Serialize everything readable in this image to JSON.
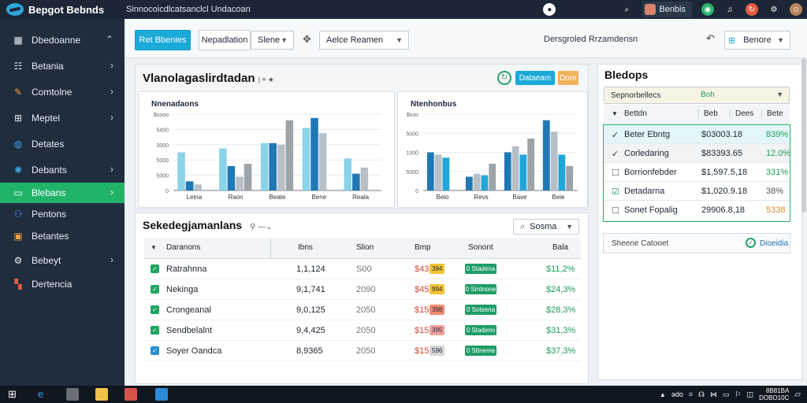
{
  "app": {
    "brand": "Bepgot Bebnds",
    "window_title": "Sinnocoicdlcatsanclcl Undacoan"
  },
  "topbar": {
    "user_name": "Benbis"
  },
  "sidebar": {
    "items": [
      {
        "label": "Dbedoanne",
        "icon": "dashboard-icon",
        "chevron": "⌃"
      },
      {
        "label": "Betania",
        "icon": "grid-list-icon",
        "chevron": "›"
      },
      {
        "label": "Comtolne",
        "icon": "tools-icon",
        "chevron": "›"
      },
      {
        "label": "Meptel",
        "icon": "table-icon",
        "chevron": "›"
      },
      {
        "label": "Detates",
        "icon": "globe-icon",
        "chevron": ""
      },
      {
        "label": "Debants",
        "icon": "network-icon",
        "chevron": "›"
      },
      {
        "label": "Blebans",
        "icon": "folder-icon",
        "chevron": "›",
        "active": true
      },
      {
        "label": "Pentons",
        "icon": "users-icon",
        "chevron": ""
      },
      {
        "label": "Betantes",
        "icon": "cart-icon",
        "chevron": ""
      },
      {
        "label": "Bebeyt",
        "icon": "settings-icon",
        "chevron": "›"
      },
      {
        "label": "Dertencia",
        "icon": "apps-icon",
        "chevron": ""
      }
    ]
  },
  "toolbar": {
    "primary_button": "Ret Bbenies",
    "segmented_left": "Nepadlation",
    "segmented_right": "Slene",
    "tool_icon": "pin-icon",
    "select_value": "Aelce Reamen",
    "status_text": "Dersgroled Rrzamdensn",
    "view_toggle": "Benore"
  },
  "dashboard": {
    "title": "Vlanolagaslirdtadan",
    "title_suffix": "| ⌖ ★",
    "refresh_icon": "refresh-icon",
    "btn_primary": "Dataeam",
    "btn_secondary": "Dore"
  },
  "chart_data": [
    {
      "type": "bar",
      "title": "Nnenadaons",
      "categories": [
        "Leina",
        "Raon",
        "Beate",
        "Bene",
        "Reala"
      ],
      "series": [
        {
          "color": "#8ad3e9",
          "values": [
            0.5,
            0.55,
            0.62,
            0.82,
            0.42
          ]
        },
        {
          "color": "#1f78b4",
          "values": [
            0.12,
            0.32,
            0.62,
            0.95,
            0.22
          ]
        },
        {
          "color": "#b7bfc7",
          "values": [
            0.08,
            0.18,
            0.6,
            0.75,
            0.3
          ]
        },
        {
          "color": "#9ea3a7",
          "values": [
            0.0,
            0.35,
            0.92,
            0.0,
            0.0
          ]
        }
      ],
      "yticks": [
        "$sooo",
        "5400",
        "3000",
        "5000",
        "5000",
        "0"
      ],
      "ylim": [
        0,
        1
      ]
    },
    {
      "type": "bar",
      "title": "Ntenhonbus",
      "categories": [
        "Beio",
        "Revs",
        "Bave",
        "Beie"
      ],
      "series": [
        {
          "color": "#1f78b4",
          "values": [
            0.5,
            0.18,
            0.5,
            0.92
          ]
        },
        {
          "color": "#b7bfc7",
          "values": [
            0.47,
            0.22,
            0.58,
            0.77
          ]
        },
        {
          "color": "#22a6d9",
          "values": [
            0.43,
            0.2,
            0.47,
            0.47
          ]
        },
        {
          "color": "#9ea3a7",
          "values": [
            0.0,
            0.35,
            0.68,
            0.32
          ]
        }
      ],
      "yticks": [
        "$soo",
        "5000",
        "1000",
        "5000",
        "0"
      ],
      "ylim": [
        0,
        1
      ]
    }
  ],
  "table": {
    "title": "Sekedegjamanlans",
    "title_icon": "link-icon",
    "search_placeholder": "Sosma",
    "headers": [
      "Daranons",
      "Ibns",
      "Slion",
      "Bmp",
      "Sonont",
      "Bala"
    ],
    "rows": [
      {
        "name": "Ratrahnna",
        "ibns": "1,1,124",
        "slion": "S00",
        "bmp": "$43",
        "badge": "394",
        "badge_color": "#f3c433",
        "sonont": "0 Stadena",
        "bala": "$11,2%"
      },
      {
        "name": "Nekinga",
        "ibns": "9,1,741",
        "slion": "2090",
        "bmp": "$45",
        "badge": "994",
        "badge_color": "#f3c433",
        "sonont": "0 Smtnone",
        "bala": "$24,3%"
      },
      {
        "name": "Crongeanal",
        "ibns": "9,0,125",
        "slion": "2050",
        "bmp": "$15",
        "badge": "398",
        "badge_color": "#f08a6f",
        "sonont": "0 Sotsena",
        "bala": "$28,3%"
      },
      {
        "name": "Sendbelalnt",
        "ibns": "9,4,425",
        "slion": "2050",
        "bmp": "$15",
        "badge": "395",
        "badge_color": "#f0a0a0",
        "sonont": "0 Stadeno",
        "bala": "$31,3%"
      },
      {
        "name": "Soyer Oandca",
        "ibns": "8,9365",
        "slion": "2050",
        "bmp": "$15",
        "badge": "596",
        "badge_color": "#d3d5d7",
        "sonont": "0 Sttneme",
        "bala": "$37,3%"
      }
    ]
  },
  "right_panel": {
    "title": "Bledops",
    "select_label": "Sepnorbellecs",
    "select_value": "Boh",
    "headers": [
      "Bettdn",
      "Beb",
      "Dees",
      "Bete"
    ],
    "rows": [
      {
        "name": "Beter Ebntg",
        "val": "$03003.18",
        "pct": "839%",
        "pct_color": "#1f9d57",
        "icon": "check-icon"
      },
      {
        "name": "Corledaring",
        "val": "$83393.65",
        "pct": "12.0%",
        "pct_color": "#1f9d57",
        "icon": "check-icon"
      },
      {
        "name": "Borrionfebder",
        "val": "$1,597.5,18",
        "pct": "331%",
        "pct_color": "#1f9d57",
        "icon": "square-icon"
      },
      {
        "name": "Detadarna",
        "val": "$1,020.9.18",
        "pct": "38%",
        "pct_color": "#555",
        "icon": "checkbox-icon"
      },
      {
        "name": "Sonet Fopalig",
        "val": "29906.8,18",
        "pct": "5338",
        "pct_color": "#d58a2a",
        "icon": "square-icon"
      }
    ],
    "search_label": "Sheene Catooet",
    "action_label": "Dioeidia"
  },
  "taskbar": {
    "tray_items": [
      "ədo",
      "⌗",
      "☊",
      "⋈",
      "▭",
      "⚐",
      "◫"
    ],
    "time": "8B81BA",
    "date": "DOBO10C"
  }
}
